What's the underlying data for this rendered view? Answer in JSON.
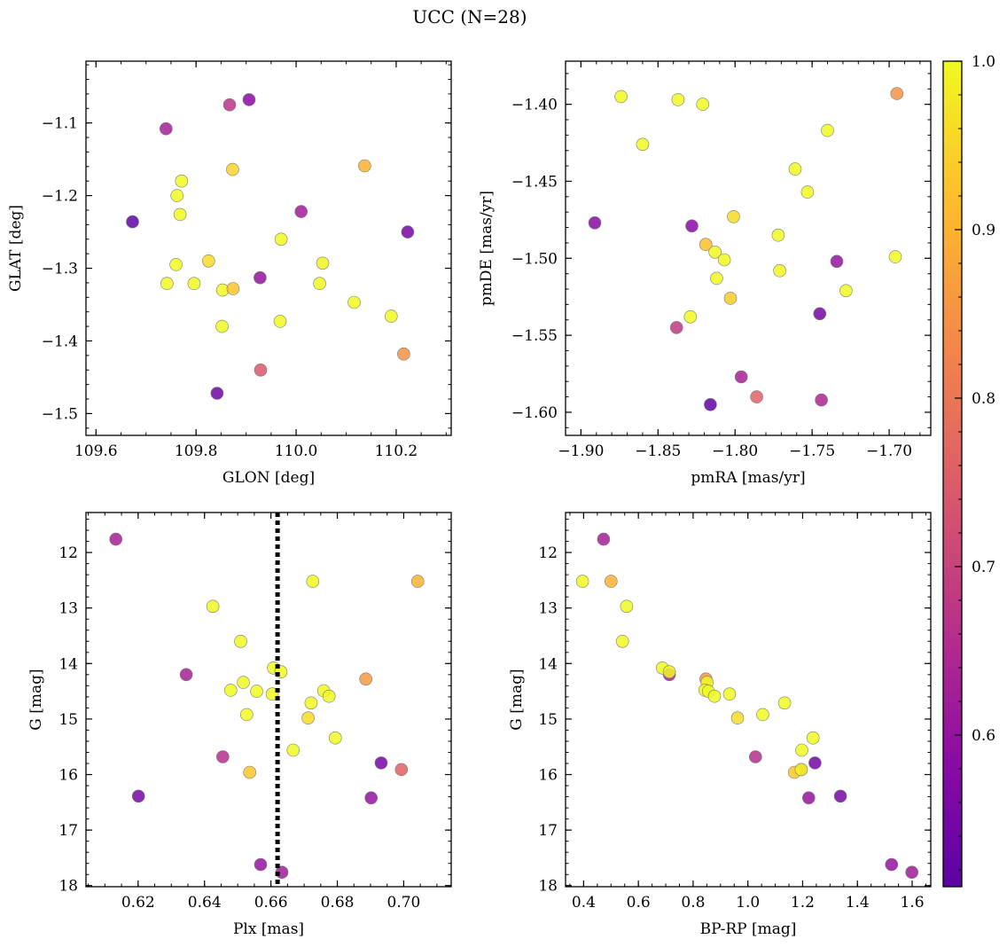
{
  "figure": {
    "title": "UCC (N=28)"
  },
  "colorbar": {
    "colormap": "plasma",
    "range": [
      0.51,
      1.0
    ],
    "ticks": [
      0.6,
      0.7,
      0.8,
      0.9,
      1.0
    ],
    "tick_labels": [
      "0.6",
      "0.7",
      "0.8",
      "0.9",
      "1.0"
    ]
  },
  "chart_data": [
    {
      "type": "scatter",
      "xlabel": "GLON [deg]",
      "ylabel": "GLAT [deg]",
      "xlim": [
        109.58,
        110.31
      ],
      "ylim": [
        -1.53,
        -1.015
      ],
      "y_inverted": false,
      "xticks": [
        109.6,
        109.8,
        110.0,
        110.2
      ],
      "xtick_labels": [
        "109.6",
        "109.8",
        "110.0",
        "110.2"
      ],
      "yticks": [
        -1.1,
        -1.2,
        -1.3,
        -1.4,
        -1.5
      ],
      "ytick_labels": [
        "−1.1",
        "−1.2",
        "−1.3",
        "−1.4",
        "−1.5"
      ],
      "points": [
        {
          "x": 109.673,
          "y": -1.236,
          "c": 0.52
        },
        {
          "x": 109.906,
          "y": -1.068,
          "c": 0.58
        },
        {
          "x": 109.867,
          "y": -1.075,
          "c": 0.67
        },
        {
          "x": 109.74,
          "y": -1.108,
          "c": 0.63
        },
        {
          "x": 110.137,
          "y": -1.159,
          "c": 0.9
        },
        {
          "x": 109.873,
          "y": -1.164,
          "c": 0.95
        },
        {
          "x": 109.771,
          "y": -1.18,
          "c": 1.0
        },
        {
          "x": 109.762,
          "y": -1.2,
          "c": 1.0
        },
        {
          "x": 109.768,
          "y": -1.226,
          "c": 1.0
        },
        {
          "x": 110.01,
          "y": -1.222,
          "c": 0.62
        },
        {
          "x": 110.223,
          "y": -1.25,
          "c": 0.55
        },
        {
          "x": 109.97,
          "y": -1.26,
          "c": 1.0
        },
        {
          "x": 109.825,
          "y": -1.29,
          "c": 0.96
        },
        {
          "x": 109.76,
          "y": -1.295,
          "c": 1.0
        },
        {
          "x": 110.053,
          "y": -1.293,
          "c": 0.99
        },
        {
          "x": 109.928,
          "y": -1.313,
          "c": 0.6
        },
        {
          "x": 109.742,
          "y": -1.321,
          "c": 1.0
        },
        {
          "x": 109.796,
          "y": -1.321,
          "c": 1.0
        },
        {
          "x": 110.047,
          "y": -1.321,
          "c": 1.0
        },
        {
          "x": 109.853,
          "y": -1.33,
          "c": 1.0
        },
        {
          "x": 109.874,
          "y": -1.328,
          "c": 0.93
        },
        {
          "x": 110.116,
          "y": -1.347,
          "c": 1.0
        },
        {
          "x": 110.19,
          "y": -1.366,
          "c": 1.0
        },
        {
          "x": 109.968,
          "y": -1.373,
          "c": 1.0
        },
        {
          "x": 109.852,
          "y": -1.38,
          "c": 1.0
        },
        {
          "x": 110.215,
          "y": -1.418,
          "c": 0.85
        },
        {
          "x": 109.929,
          "y": -1.44,
          "c": 0.74
        },
        {
          "x": 109.842,
          "y": -1.472,
          "c": 0.54
        }
      ]
    },
    {
      "type": "scatter",
      "xlabel": "pmRA [mas/yr]",
      "ylabel": "pmDE [mas/yr]",
      "xlim": [
        -1.91,
        -1.673
      ],
      "ylim": [
        -1.615,
        -1.372
      ],
      "y_inverted": false,
      "xticks": [
        -1.9,
        -1.85,
        -1.8,
        -1.75,
        -1.7
      ],
      "xtick_labels": [
        "−1.90",
        "−1.85",
        "−1.80",
        "−1.75",
        "−1.70"
      ],
      "yticks": [
        -1.4,
        -1.45,
        -1.5,
        -1.55,
        -1.6
      ],
      "ytick_labels": [
        "−1.40",
        "−1.45",
        "−1.50",
        "−1.55",
        "−1.60"
      ],
      "points": [
        {
          "x": -1.874,
          "y": -1.395,
          "c": 1.0
        },
        {
          "x": -1.837,
          "y": -1.397,
          "c": 1.0
        },
        {
          "x": -1.821,
          "y": -1.4,
          "c": 1.0
        },
        {
          "x": -1.695,
          "y": -1.393,
          "c": 0.85
        },
        {
          "x": -1.74,
          "y": -1.417,
          "c": 1.0
        },
        {
          "x": -1.86,
          "y": -1.426,
          "c": 1.0
        },
        {
          "x": -1.761,
          "y": -1.442,
          "c": 1.0
        },
        {
          "x": -1.753,
          "y": -1.457,
          "c": 1.0
        },
        {
          "x": -1.801,
          "y": -1.473,
          "c": 0.96
        },
        {
          "x": -1.891,
          "y": -1.477,
          "c": 0.58
        },
        {
          "x": -1.828,
          "y": -1.479,
          "c": 0.58
        },
        {
          "x": -1.772,
          "y": -1.485,
          "c": 1.0
        },
        {
          "x": -1.819,
          "y": -1.491,
          "c": 0.92
        },
        {
          "x": -1.813,
          "y": -1.496,
          "c": 1.0
        },
        {
          "x": -1.807,
          "y": -1.501,
          "c": 1.0
        },
        {
          "x": -1.734,
          "y": -1.502,
          "c": 0.6
        },
        {
          "x": -1.696,
          "y": -1.499,
          "c": 1.0
        },
        {
          "x": -1.771,
          "y": -1.508,
          "c": 1.0
        },
        {
          "x": -1.812,
          "y": -1.513,
          "c": 1.0
        },
        {
          "x": -1.728,
          "y": -1.521,
          "c": 1.0
        },
        {
          "x": -1.803,
          "y": -1.526,
          "c": 0.94
        },
        {
          "x": -1.745,
          "y": -1.536,
          "c": 0.55
        },
        {
          "x": -1.829,
          "y": -1.538,
          "c": 1.0
        },
        {
          "x": -1.838,
          "y": -1.545,
          "c": 0.68
        },
        {
          "x": -1.796,
          "y": -1.577,
          "c": 0.63
        },
        {
          "x": -1.786,
          "y": -1.59,
          "c": 0.76
        },
        {
          "x": -1.744,
          "y": -1.592,
          "c": 0.64
        },
        {
          "x": -1.816,
          "y": -1.595,
          "c": 0.52
        }
      ]
    },
    {
      "type": "scatter",
      "xlabel": "Plx [mas]",
      "ylabel": "G [mag]",
      "xlim": [
        0.6043,
        0.7143
      ],
      "ylim": [
        11.28,
        18.02
      ],
      "y_inverted": true,
      "xticks": [
        0.62,
        0.64,
        0.66,
        0.68,
        0.7
      ],
      "xtick_labels": [
        "0.62",
        "0.64",
        "0.66",
        "0.68",
        "0.70"
      ],
      "yticks": [
        12,
        13,
        14,
        15,
        16,
        17,
        18
      ],
      "ytick_labels": [
        "12",
        "13",
        "14",
        "15",
        "16",
        "17",
        "18"
      ],
      "vline": {
        "x": 0.662,
        "style": "dotted",
        "color": "#000000"
      },
      "points": [
        {
          "x": 0.6133,
          "y": 11.76,
          "c": 0.63
        },
        {
          "x": 0.6726,
          "y": 12.52,
          "c": 1.0
        },
        {
          "x": 0.7042,
          "y": 12.52,
          "c": 0.9
        },
        {
          "x": 0.6425,
          "y": 12.97,
          "c": 1.0
        },
        {
          "x": 0.6509,
          "y": 13.6,
          "c": 1.0
        },
        {
          "x": 0.6608,
          "y": 14.08,
          "c": 1.0
        },
        {
          "x": 0.663,
          "y": 14.15,
          "c": 1.0
        },
        {
          "x": 0.6345,
          "y": 14.2,
          "c": 0.63
        },
        {
          "x": 0.6886,
          "y": 14.28,
          "c": 0.86
        },
        {
          "x": 0.6517,
          "y": 14.34,
          "c": 1.0
        },
        {
          "x": 0.6479,
          "y": 14.48,
          "c": 1.0
        },
        {
          "x": 0.6557,
          "y": 14.5,
          "c": 1.0
        },
        {
          "x": 0.6759,
          "y": 14.49,
          "c": 1.0
        },
        {
          "x": 0.6604,
          "y": 14.55,
          "c": 1.0
        },
        {
          "x": 0.6775,
          "y": 14.59,
          "c": 1.0
        },
        {
          "x": 0.6721,
          "y": 14.71,
          "c": 1.0
        },
        {
          "x": 0.6527,
          "y": 14.92,
          "c": 1.0
        },
        {
          "x": 0.6712,
          "y": 14.98,
          "c": 0.96
        },
        {
          "x": 0.6794,
          "y": 15.34,
          "c": 1.0
        },
        {
          "x": 0.6667,
          "y": 15.56,
          "c": 1.0
        },
        {
          "x": 0.6455,
          "y": 15.68,
          "c": 0.66
        },
        {
          "x": 0.6932,
          "y": 15.79,
          "c": 0.55
        },
        {
          "x": 0.6993,
          "y": 15.91,
          "c": 0.76
        },
        {
          "x": 0.6536,
          "y": 15.96,
          "c": 0.93
        },
        {
          "x": 0.6201,
          "y": 16.39,
          "c": 0.55
        },
        {
          "x": 0.6902,
          "y": 16.42,
          "c": 0.6
        },
        {
          "x": 0.6569,
          "y": 17.62,
          "c": 0.6
        },
        {
          "x": 0.6633,
          "y": 17.76,
          "c": 0.62
        }
      ]
    },
    {
      "type": "scatter",
      "xlabel": "BP-RP [mag]",
      "ylabel": "G [mag]",
      "xlim": [
        0.334,
        1.668
      ],
      "ylim": [
        11.28,
        18.02
      ],
      "y_inverted": true,
      "xticks": [
        0.4,
        0.6,
        0.8,
        1.0,
        1.2,
        1.4,
        1.6
      ],
      "xtick_labels": [
        "0.4",
        "0.6",
        "0.8",
        "1.0",
        "1.2",
        "1.4",
        "1.6"
      ],
      "yticks": [
        12,
        13,
        14,
        15,
        16,
        17,
        18
      ],
      "ytick_labels": [
        "12",
        "13",
        "14",
        "15",
        "16",
        "17",
        "18"
      ],
      "points": [
        {
          "x": 0.473,
          "y": 11.76,
          "c": 0.63
        },
        {
          "x": 0.396,
          "y": 12.52,
          "c": 1.0
        },
        {
          "x": 0.5,
          "y": 12.52,
          "c": 0.9
        },
        {
          "x": 0.557,
          "y": 12.97,
          "c": 1.0
        },
        {
          "x": 0.542,
          "y": 13.6,
          "c": 1.0
        },
        {
          "x": 0.688,
          "y": 14.08,
          "c": 1.0
        },
        {
          "x": 0.713,
          "y": 14.2,
          "c": 0.63
        },
        {
          "x": 0.713,
          "y": 14.15,
          "c": 1.0
        },
        {
          "x": 0.847,
          "y": 14.28,
          "c": 0.86
        },
        {
          "x": 0.851,
          "y": 14.34,
          "c": 1.0
        },
        {
          "x": 0.843,
          "y": 14.48,
          "c": 1.0
        },
        {
          "x": 0.856,
          "y": 14.5,
          "c": 1.0
        },
        {
          "x": 0.878,
          "y": 14.59,
          "c": 1.0
        },
        {
          "x": 0.933,
          "y": 14.55,
          "c": 1.0
        },
        {
          "x": 1.134,
          "y": 14.71,
          "c": 1.0
        },
        {
          "x": 1.054,
          "y": 14.92,
          "c": 1.0
        },
        {
          "x": 0.962,
          "y": 14.98,
          "c": 0.96
        },
        {
          "x": 1.238,
          "y": 15.34,
          "c": 1.0
        },
        {
          "x": 1.197,
          "y": 15.56,
          "c": 1.0
        },
        {
          "x": 1.028,
          "y": 15.68,
          "c": 0.66
        },
        {
          "x": 1.245,
          "y": 15.79,
          "c": 0.55
        },
        {
          "x": 1.195,
          "y": 15.91,
          "c": 0.76
        },
        {
          "x": 1.17,
          "y": 15.96,
          "c": 0.93
        },
        {
          "x": 1.338,
          "y": 16.39,
          "c": 0.55
        },
        {
          "x": 1.222,
          "y": 16.42,
          "c": 0.6
        },
        {
          "x": 1.525,
          "y": 17.62,
          "c": 0.6
        },
        {
          "x": 1.599,
          "y": 17.76,
          "c": 0.62
        },
        {
          "x": 1.195,
          "y": 15.91,
          "c": 1.0
        }
      ]
    }
  ]
}
